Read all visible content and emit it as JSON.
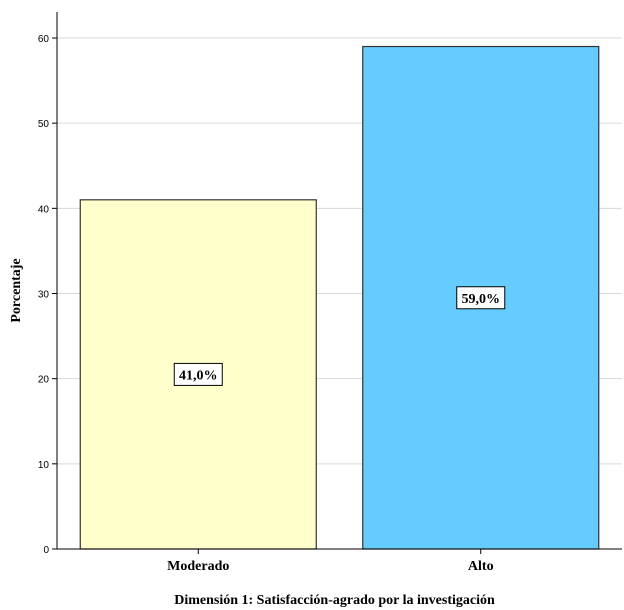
{
  "chart_data": {
    "type": "bar",
    "categories": [
      "Moderado",
      "Alto"
    ],
    "values": [
      41.0,
      59.0
    ],
    "data_labels": [
      "41,0%",
      "59,0%"
    ],
    "colors": [
      "#FFFFCC",
      "#66CCFF"
    ],
    "ylabel": "Porcentaje",
    "xlabel": "Dimensión 1: Satisfacción-agrado por la investigación",
    "ylim": [
      0,
      60
    ],
    "yticks": [
      "0",
      "10",
      "20",
      "30",
      "40",
      "50",
      "60"
    ],
    "grid": true
  }
}
